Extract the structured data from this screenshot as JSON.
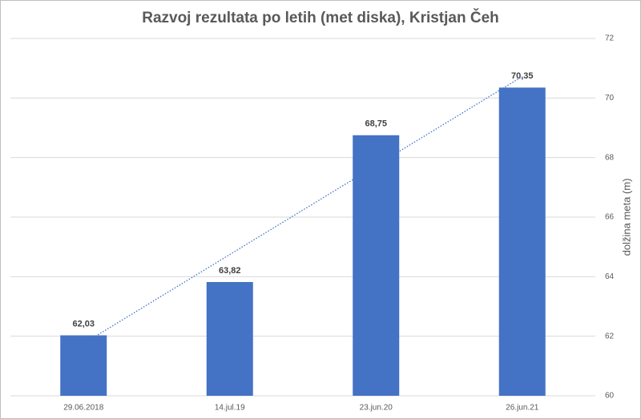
{
  "chart_data": {
    "type": "bar",
    "title": "Razvoj rezultata po letih (met diska), Kristjan Čeh",
    "categories": [
      "29.06.2018",
      "14.jul.19",
      "23.jun.20",
      "26.jun.21"
    ],
    "values": [
      62.03,
      63.82,
      68.75,
      70.35
    ],
    "value_labels": [
      "62,03",
      "63,82",
      "68,75",
      "70,35"
    ],
    "color": "#4472c4",
    "ylabel": "dolžina meta (m)",
    "ylim": [
      60,
      72
    ],
    "yticks": [
      60,
      62,
      64,
      66,
      68,
      70,
      72
    ],
    "grid": true,
    "y_axis_side": "right",
    "trendline": "linear",
    "trendline_color": "#4472c4"
  }
}
